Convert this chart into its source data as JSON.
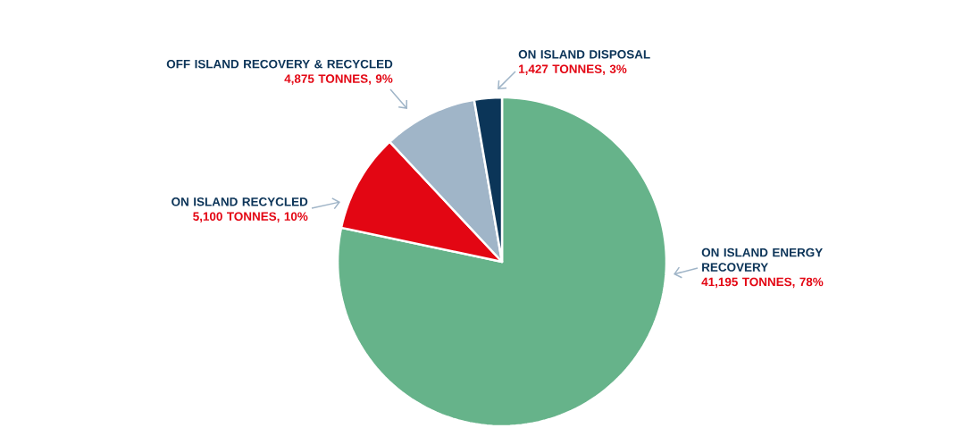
{
  "chart_data": {
    "type": "pie",
    "categories": [
      "ON ISLAND ENERGY RECOVERY",
      "ON ISLAND RECYCLED",
      "OFF ISLAND RECOVERY & RECYCLED",
      "ON ISLAND DISPOSAL"
    ],
    "values": [
      41195,
      5100,
      4875,
      1427
    ],
    "value_labels": [
      "41,195 TONNES, 78%",
      "5,100 TONNES, 10%",
      "4,875 TONNES, 9%",
      "1,427 TONNES, 3%"
    ],
    "colors": [
      "#66b38a",
      "#e30613",
      "#a0b5c8",
      "#0b3558"
    ]
  }
}
